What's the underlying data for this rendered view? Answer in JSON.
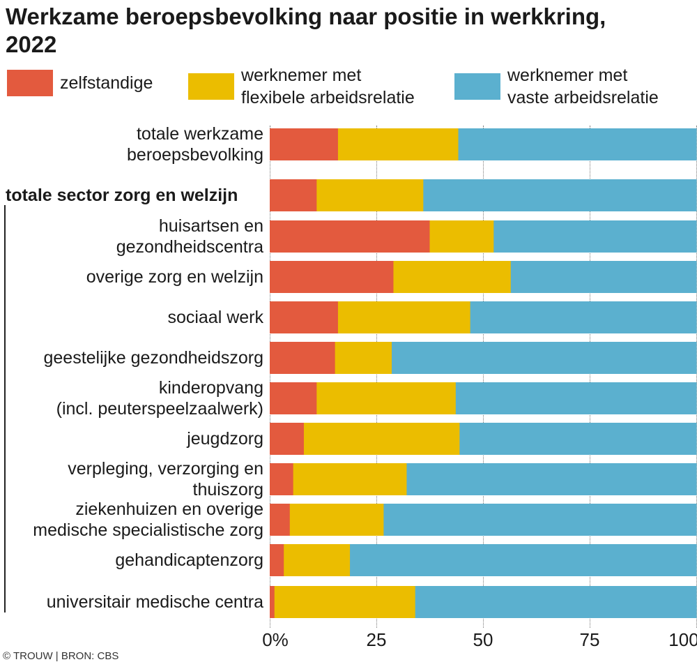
{
  "chart_data": {
    "type": "bar",
    "orientation": "horizontal",
    "stacked": true,
    "title": "Werkzame beroepsbevolking naar positie in werkkring, 2022",
    "categories": [
      "totale werkzame beroepsbevolking",
      "totale sector zorg en welzijn",
      "huisartsen en gezondheidscentra",
      "overige zorg en welzijn",
      "sociaal werk",
      "geestelijke gezondheidszorg",
      "kinderopvang (incl. peuterspeelzaalwerk)",
      "jeugdzorg",
      "verpleging, verzorging en thuiszorg",
      "ziekenhuizen en overige medische specialistische zorg",
      "gehandicaptenzorg",
      "universitair medische centra"
    ],
    "category_lines": [
      [
        "totale werkzame",
        "beroepsbevolking"
      ],
      [
        "totale sector zorg en welzijn"
      ],
      [
        "huisartsen en",
        "gezondheidscentra"
      ],
      [
        "overige zorg en welzijn"
      ],
      [
        "sociaal werk"
      ],
      [
        "geestelijke gezondheidszorg"
      ],
      [
        "kinderopvang",
        "(incl. peuterspeelzaalwerk)"
      ],
      [
        "jeugdzorg"
      ],
      [
        "verpleging, verzorging en",
        "thuiszorg"
      ],
      [
        "ziekenhuizen en overige",
        "medische specialistische zorg"
      ],
      [
        "gehandicaptenzorg"
      ],
      [
        "universitair medische centra"
      ]
    ],
    "series": [
      {
        "name": "zelfstandige",
        "color": "#e35a3e",
        "values": [
          16,
          11,
          37.5,
          29,
          16,
          15.3,
          11,
          8,
          5.5,
          4.7,
          3.3,
          1.1
        ]
      },
      {
        "name": "werknemer met flexibele arbeidsrelatie",
        "color": "#ebbd00",
        "values": [
          28.2,
          25,
          15,
          27.5,
          31,
          13.3,
          32.6,
          36.5,
          26.6,
          22,
          15.5,
          33
        ]
      },
      {
        "name": "werknemer met vaste arbeidsrelatie",
        "color": "#5bb0cf",
        "values": [
          55.8,
          64,
          47.5,
          43.5,
          53,
          71.4,
          56.4,
          55.5,
          67.9,
          73.3,
          81.2,
          65.9
        ]
      }
    ],
    "legend_lines": [
      [
        "zelfstandige"
      ],
      [
        "werknemer met",
        "flexibele arbeidsrelatie"
      ],
      [
        "werknemer met",
        "vaste arbeidsrelatie"
      ]
    ],
    "xlim": [
      0,
      100
    ],
    "xticks": [
      "0%",
      "25",
      "50",
      "75",
      "100"
    ],
    "xtick_values": [
      0,
      25,
      50,
      75,
      100
    ],
    "grid": "vertical dotted",
    "legend": "top"
  },
  "source": "© TROUW | BRON: CBS"
}
